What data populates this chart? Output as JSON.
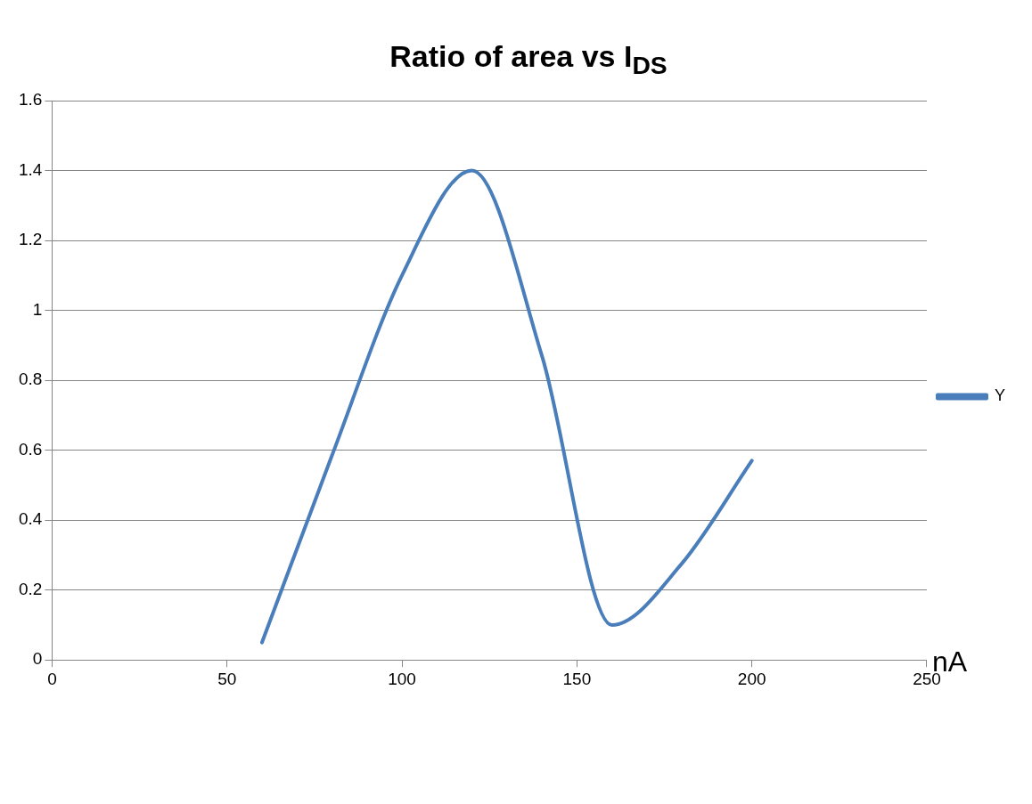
{
  "chart_data": {
    "type": "line",
    "title": "Ratio of area vs I$_{DS}$",
    "xlabel": "nA",
    "x": [
      60,
      80,
      100,
      120,
      140,
      160,
      180,
      200
    ],
    "series": [
      {
        "name": "Y",
        "color": "#4a7ebb",
        "values": [
          0.05,
          0.585,
          1.1,
          1.4,
          0.87,
          0.1,
          0.276,
          0.57
        ]
      }
    ],
    "xlim": [
      0,
      250
    ],
    "xticks": [
      0,
      50,
      100,
      150,
      200,
      250
    ],
    "ylim": [
      0,
      1.6
    ],
    "yticks": [
      0,
      0.2,
      0.4,
      0.6,
      0.8,
      1,
      1.2,
      1.4,
      1.6
    ],
    "grid": "y",
    "legend": "right",
    "marker": "none",
    "line_style": "solid"
  }
}
